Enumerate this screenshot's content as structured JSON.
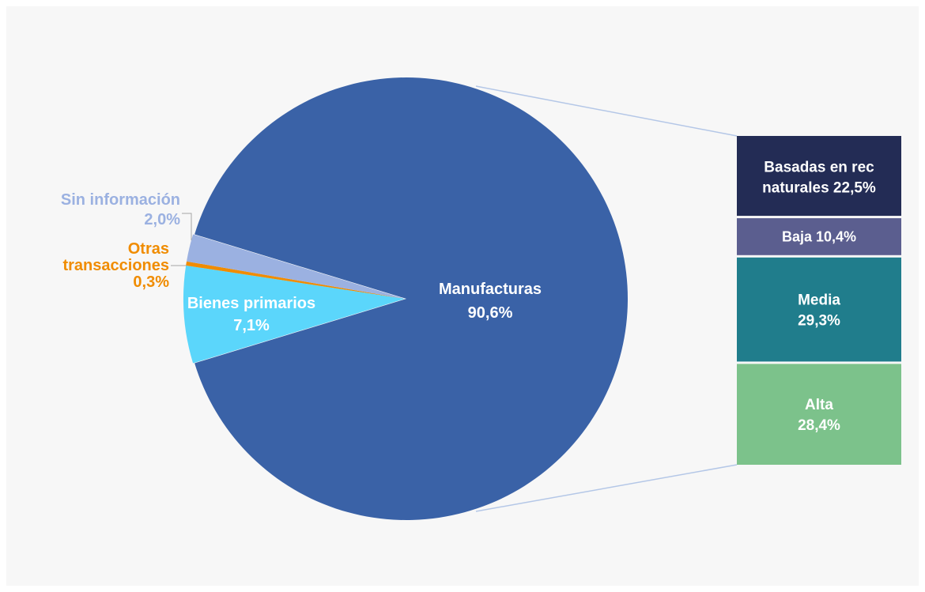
{
  "chart_data": {
    "type": "pie",
    "subtype": "bar-of-pie",
    "slices": [
      {
        "name": "Manufacturas",
        "value": 90.6,
        "display": "90,6%",
        "color": "#3a62a7",
        "label_color": "#ffffff"
      },
      {
        "name": "Bienes primarios",
        "value": 7.1,
        "display": "7,1%",
        "color": "#5bd6fb",
        "label_color": "#ffffff"
      },
      {
        "name": "Otras transacciones",
        "value": 0.3,
        "display": "0,3%",
        "color": "#f08c00",
        "label_color": "#f08c00"
      },
      {
        "name": "Sin información",
        "value": 2.0,
        "display": "2,0%",
        "color": "#9bb1e1",
        "label_color": "#9bb1e1"
      }
    ],
    "breakdown_of": "Manufacturas",
    "breakdown": [
      {
        "name": "Basadas en rec naturales",
        "value": 22.5,
        "display": "22,5%",
        "color": "#232c55"
      },
      {
        "name": "Baja",
        "value": 10.4,
        "display": "10,4%",
        "color": "#5b5e8f"
      },
      {
        "name": "Media",
        "value": 29.3,
        "display": "29,3%",
        "color": "#207d8c"
      },
      {
        "name": "Alta",
        "value": 28.4,
        "display": "28,4%",
        "color": "#7cc28b"
      }
    ],
    "connector_color": "#b4c7e7",
    "background": "#f7f7f7"
  }
}
